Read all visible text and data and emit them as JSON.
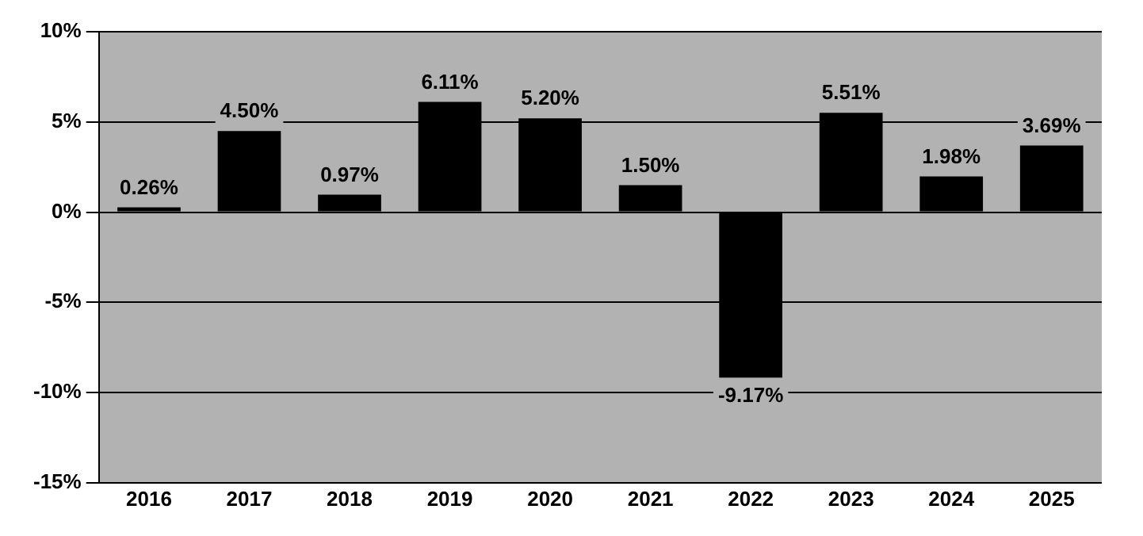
{
  "chart_data": {
    "type": "bar",
    "categories": [
      "2016",
      "2017",
      "2018",
      "2019",
      "2020",
      "2021",
      "2022",
      "2023",
      "2024",
      "2025"
    ],
    "values": [
      0.26,
      4.5,
      0.97,
      6.11,
      5.2,
      1.5,
      -9.17,
      5.51,
      1.98,
      3.69
    ],
    "value_labels": [
      "0.26%",
      "4.50%",
      "0.97%",
      "6.11%",
      "5.20%",
      "1.50%",
      "-9.17%",
      "5.51%",
      "1.98%",
      "3.69%"
    ],
    "color": "#000000",
    "ylim": [
      -15,
      10
    ],
    "yticks": [
      {
        "value": -15,
        "label": "-15%"
      },
      {
        "value": -10,
        "label": "-10%"
      },
      {
        "value": -5,
        "label": "-5%"
      },
      {
        "value": 0,
        "label": "0%"
      },
      {
        "value": 5,
        "label": "5%"
      },
      {
        "value": 10,
        "label": "10%"
      }
    ],
    "grid": "y",
    "legend": false
  }
}
